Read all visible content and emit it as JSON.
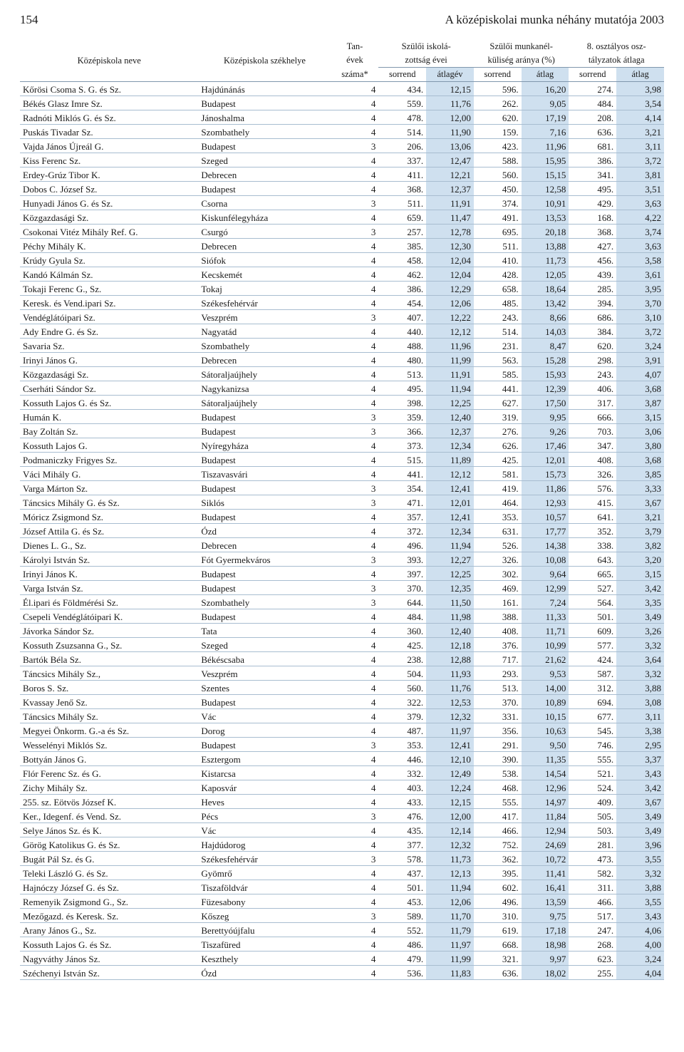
{
  "page_number": "154",
  "page_title": "A középiskolai munka néhány mutatója 2003",
  "header": {
    "col_school_name": "Középiskola neve",
    "col_school_loc": "Középiskola székhelye",
    "col_years_top": "Tan-",
    "col_years_mid": "évek",
    "col_years_bot": "száma*",
    "group_iskola_top": "Szülői iskolá-",
    "group_iskola_bot": "zottság évei",
    "group_munka_top": "Szülői munkanél-",
    "group_munka_bot": "küliség aránya (%)",
    "group_oszt_top": "8. osztályos osz-",
    "group_oszt_bot": "tályzatok átlaga",
    "sub_sorrend": "sorrend",
    "sub_atlagev": "átlagév",
    "sub_atlag": "átlag"
  },
  "colors": {
    "shade": "#cfe0ef",
    "row_border": "#a8bdd0",
    "head_border": "#8097ad",
    "text": "#1a1a1a",
    "background": "#ffffff"
  },
  "rows": [
    {
      "name": "Kőrösi Csoma S. G. és Sz.",
      "loc": "Hajdúnánás",
      "yrs": "4",
      "s1": "434.",
      "v1": "12,15",
      "s2": "596.",
      "v2": "16,20",
      "s3": "274.",
      "v3": "3,98"
    },
    {
      "name": "Békés Glasz Imre Sz.",
      "loc": "Budapest",
      "yrs": "4",
      "s1": "559.",
      "v1": "11,76",
      "s2": "262.",
      "v2": "9,05",
      "s3": "484.",
      "v3": "3,54"
    },
    {
      "name": "Radnóti Miklós G. és Sz.",
      "loc": "Jánoshalma",
      "yrs": "4",
      "s1": "478.",
      "v1": "12,00",
      "s2": "620.",
      "v2": "17,19",
      "s3": "208.",
      "v3": "4,14"
    },
    {
      "name": "Puskás Tivadar Sz.",
      "loc": "Szombathely",
      "yrs": "4",
      "s1": "514.",
      "v1": "11,90",
      "s2": "159.",
      "v2": "7,16",
      "s3": "636.",
      "v3": "3,21"
    },
    {
      "name": "Vajda János Újreál G.",
      "loc": "Budapest",
      "yrs": "3",
      "s1": "206.",
      "v1": "13,06",
      "s2": "423.",
      "v2": "11,96",
      "s3": "681.",
      "v3": "3,11"
    },
    {
      "name": "Kiss Ferenc Sz.",
      "loc": "Szeged",
      "yrs": "4",
      "s1": "337.",
      "v1": "12,47",
      "s2": "588.",
      "v2": "15,95",
      "s3": "386.",
      "v3": "3,72"
    },
    {
      "name": "Erdey-Grúz Tibor K.",
      "loc": "Debrecen",
      "yrs": "4",
      "s1": "411.",
      "v1": "12,21",
      "s2": "560.",
      "v2": "15,15",
      "s3": "341.",
      "v3": "3,81"
    },
    {
      "name": "Dobos C. József Sz.",
      "loc": "Budapest",
      "yrs": "4",
      "s1": "368.",
      "v1": "12,37",
      "s2": "450.",
      "v2": "12,58",
      "s3": "495.",
      "v3": "3,51"
    },
    {
      "name": "Hunyadi János G. és Sz.",
      "loc": "Csorna",
      "yrs": "3",
      "s1": "511.",
      "v1": "11,91",
      "s2": "374.",
      "v2": "10,91",
      "s3": "429.",
      "v3": "3,63"
    },
    {
      "name": "Közgazdasági Sz.",
      "loc": "Kiskunfélegyháza",
      "yrs": "4",
      "s1": "659.",
      "v1": "11,47",
      "s2": "491.",
      "v2": "13,53",
      "s3": "168.",
      "v3": "4,22"
    },
    {
      "name": "Csokonai Vitéz Mihály Ref. G.",
      "loc": "Csurgó",
      "yrs": "3",
      "s1": "257.",
      "v1": "12,78",
      "s2": "695.",
      "v2": "20,18",
      "s3": "368.",
      "v3": "3,74"
    },
    {
      "name": "Péchy Mihály K.",
      "loc": "Debrecen",
      "yrs": "4",
      "s1": "385.",
      "v1": "12,30",
      "s2": "511.",
      "v2": "13,88",
      "s3": "427.",
      "v3": "3,63"
    },
    {
      "name": "Krúdy Gyula Sz.",
      "loc": "Siófok",
      "yrs": "4",
      "s1": "458.",
      "v1": "12,04",
      "s2": "410.",
      "v2": "11,73",
      "s3": "456.",
      "v3": "3,58"
    },
    {
      "name": "Kandó Kálmán Sz.",
      "loc": "Kecskemét",
      "yrs": "4",
      "s1": "462.",
      "v1": "12,04",
      "s2": "428.",
      "v2": "12,05",
      "s3": "439.",
      "v3": "3,61"
    },
    {
      "name": "Tokaji Ferenc G., Sz.",
      "loc": "Tokaj",
      "yrs": "4",
      "s1": "386.",
      "v1": "12,29",
      "s2": "658.",
      "v2": "18,64",
      "s3": "285.",
      "v3": "3,95"
    },
    {
      "name": "Keresk. és Vend.ipari Sz.",
      "loc": "Székesfehérvár",
      "yrs": "4",
      "s1": "454.",
      "v1": "12,06",
      "s2": "485.",
      "v2": "13,42",
      "s3": "394.",
      "v3": "3,70"
    },
    {
      "name": "Vendéglátóipari Sz.",
      "loc": "Veszprém",
      "yrs": "3",
      "s1": "407.",
      "v1": "12,22",
      "s2": "243.",
      "v2": "8,66",
      "s3": "686.",
      "v3": "3,10"
    },
    {
      "name": "Ady Endre G. és Sz.",
      "loc": "Nagyatád",
      "yrs": "4",
      "s1": "440.",
      "v1": "12,12",
      "s2": "514.",
      "v2": "14,03",
      "s3": "384.",
      "v3": "3,72"
    },
    {
      "name": "Savaria Sz.",
      "loc": "Szombathely",
      "yrs": "4",
      "s1": "488.",
      "v1": "11,96",
      "s2": "231.",
      "v2": "8,47",
      "s3": "620.",
      "v3": "3,24"
    },
    {
      "name": "Irinyi János G.",
      "loc": "Debrecen",
      "yrs": "4",
      "s1": "480.",
      "v1": "11,99",
      "s2": "563.",
      "v2": "15,28",
      "s3": "298.",
      "v3": "3,91"
    },
    {
      "name": "Közgazdasági Sz.",
      "loc": "Sátoraljaújhely",
      "yrs": "4",
      "s1": "513.",
      "v1": "11,91",
      "s2": "585.",
      "v2": "15,93",
      "s3": "243.",
      "v3": "4,07"
    },
    {
      "name": "Cserháti Sándor Sz.",
      "loc": "Nagykanizsa",
      "yrs": "4",
      "s1": "495.",
      "v1": "11,94",
      "s2": "441.",
      "v2": "12,39",
      "s3": "406.",
      "v3": "3,68"
    },
    {
      "name": "Kossuth Lajos G. és Sz.",
      "loc": "Sátoraljaújhely",
      "yrs": "4",
      "s1": "398.",
      "v1": "12,25",
      "s2": "627.",
      "v2": "17,50",
      "s3": "317.",
      "v3": "3,87"
    },
    {
      "name": "Humán K.",
      "loc": "Budapest",
      "yrs": "3",
      "s1": "359.",
      "v1": "12,40",
      "s2": "319.",
      "v2": "9,95",
      "s3": "666.",
      "v3": "3,15"
    },
    {
      "name": "Bay Zoltán Sz.",
      "loc": "Budapest",
      "yrs": "3",
      "s1": "366.",
      "v1": "12,37",
      "s2": "276.",
      "v2": "9,26",
      "s3": "703.",
      "v3": "3,06"
    },
    {
      "name": "Kossuth Lajos G.",
      "loc": "Nyíregyháza",
      "yrs": "4",
      "s1": "373.",
      "v1": "12,34",
      "s2": "626.",
      "v2": "17,46",
      "s3": "347.",
      "v3": "3,80"
    },
    {
      "name": "Podmaniczky Frigyes Sz.",
      "loc": "Budapest",
      "yrs": "4",
      "s1": "515.",
      "v1": "11,89",
      "s2": "425.",
      "v2": "12,01",
      "s3": "408.",
      "v3": "3,68"
    },
    {
      "name": "Váci Mihály G.",
      "loc": "Tiszavasvári",
      "yrs": "4",
      "s1": "441.",
      "v1": "12,12",
      "s2": "581.",
      "v2": "15,73",
      "s3": "326.",
      "v3": "3,85"
    },
    {
      "name": "Varga Márton Sz.",
      "loc": "Budapest",
      "yrs": "3",
      "s1": "354.",
      "v1": "12,41",
      "s2": "419.",
      "v2": "11,86",
      "s3": "576.",
      "v3": "3,33"
    },
    {
      "name": "Táncsics Mihály G. és Sz.",
      "loc": "Siklós",
      "yrs": "3",
      "s1": "471.",
      "v1": "12,01",
      "s2": "464.",
      "v2": "12,93",
      "s3": "415.",
      "v3": "3,67"
    },
    {
      "name": "Móricz Zsigmond Sz.",
      "loc": "Budapest",
      "yrs": "4",
      "s1": "357.",
      "v1": "12,41",
      "s2": "353.",
      "v2": "10,57",
      "s3": "641.",
      "v3": "3,21"
    },
    {
      "name": "József Attila G. és Sz.",
      "loc": "Ózd",
      "yrs": "4",
      "s1": "372.",
      "v1": "12,34",
      "s2": "631.",
      "v2": "17,77",
      "s3": "352.",
      "v3": "3,79"
    },
    {
      "name": "Dienes L. G., Sz.",
      "loc": "Debrecen",
      "yrs": "4",
      "s1": "496.",
      "v1": "11,94",
      "s2": "526.",
      "v2": "14,38",
      "s3": "338.",
      "v3": "3,82"
    },
    {
      "name": "Károlyi István Sz.",
      "loc": "Fót Gyermekváros",
      "yrs": "3",
      "s1": "393.",
      "v1": "12,27",
      "s2": "326.",
      "v2": "10,08",
      "s3": "643.",
      "v3": "3,20"
    },
    {
      "name": "Irinyi János K.",
      "loc": "Budapest",
      "yrs": "4",
      "s1": "397.",
      "v1": "12,25",
      "s2": "302.",
      "v2": "9,64",
      "s3": "665.",
      "v3": "3,15"
    },
    {
      "name": "Varga István Sz.",
      "loc": "Budapest",
      "yrs": "3",
      "s1": "370.",
      "v1": "12,35",
      "s2": "469.",
      "v2": "12,99",
      "s3": "527.",
      "v3": "3,42"
    },
    {
      "name": "Él.ipari és Földmérési Sz.",
      "loc": "Szombathely",
      "yrs": "3",
      "s1": "644.",
      "v1": "11,50",
      "s2": "161.",
      "v2": "7,24",
      "s3": "564.",
      "v3": "3,35"
    },
    {
      "name": "Csepeli Vendéglátóipari K.",
      "loc": "Budapest",
      "yrs": "4",
      "s1": "484.",
      "v1": "11,98",
      "s2": "388.",
      "v2": "11,33",
      "s3": "501.",
      "v3": "3,49"
    },
    {
      "name": "Jávorka Sándor Sz.",
      "loc": "Tata",
      "yrs": "4",
      "s1": "360.",
      "v1": "12,40",
      "s2": "408.",
      "v2": "11,71",
      "s3": "609.",
      "v3": "3,26"
    },
    {
      "name": "Kossuth Zsuzsanna G., Sz.",
      "loc": "Szeged",
      "yrs": "4",
      "s1": "425.",
      "v1": "12,18",
      "s2": "376.",
      "v2": "10,99",
      "s3": "577.",
      "v3": "3,32"
    },
    {
      "name": "Bartók Béla Sz.",
      "loc": "Békéscsaba",
      "yrs": "4",
      "s1": "238.",
      "v1": "12,88",
      "s2": "717.",
      "v2": "21,62",
      "s3": "424.",
      "v3": "3,64"
    },
    {
      "name": "Táncsics Mihály Sz.,",
      "loc": "Veszprém",
      "yrs": "4",
      "s1": "504.",
      "v1": "11,93",
      "s2": "293.",
      "v2": "9,53",
      "s3": "587.",
      "v3": "3,32"
    },
    {
      "name": "Boros S. Sz.",
      "loc": "Szentes",
      "yrs": "4",
      "s1": "560.",
      "v1": "11,76",
      "s2": "513.",
      "v2": "14,00",
      "s3": "312.",
      "v3": "3,88"
    },
    {
      "name": "Kvassay Jenő Sz.",
      "loc": "Budapest",
      "yrs": "4",
      "s1": "322.",
      "v1": "12,53",
      "s2": "370.",
      "v2": "10,89",
      "s3": "694.",
      "v3": "3,08"
    },
    {
      "name": "Táncsics Mihály Sz.",
      "loc": "Vác",
      "yrs": "4",
      "s1": "379.",
      "v1": "12,32",
      "s2": "331.",
      "v2": "10,15",
      "s3": "677.",
      "v3": "3,11"
    },
    {
      "name": "Megyei Önkorm. G.-a és Sz.",
      "loc": "Dorog",
      "yrs": "4",
      "s1": "487.",
      "v1": "11,97",
      "s2": "356.",
      "v2": "10,63",
      "s3": "545.",
      "v3": "3,38"
    },
    {
      "name": "Wesselényi Miklós Sz.",
      "loc": "Budapest",
      "yrs": "3",
      "s1": "353.",
      "v1": "12,41",
      "s2": "291.",
      "v2": "9,50",
      "s3": "746.",
      "v3": "2,95"
    },
    {
      "name": "Bottyán János G.",
      "loc": "Esztergom",
      "yrs": "4",
      "s1": "446.",
      "v1": "12,10",
      "s2": "390.",
      "v2": "11,35",
      "s3": "555.",
      "v3": "3,37"
    },
    {
      "name": "Flór Ferenc Sz. és G.",
      "loc": "Kistarcsa",
      "yrs": "4",
      "s1": "332.",
      "v1": "12,49",
      "s2": "538.",
      "v2": "14,54",
      "s3": "521.",
      "v3": "3,43"
    },
    {
      "name": "Zichy Mihály Sz.",
      "loc": "Kaposvár",
      "yrs": "4",
      "s1": "403.",
      "v1": "12,24",
      "s2": "468.",
      "v2": "12,96",
      "s3": "524.",
      "v3": "3,42"
    },
    {
      "name": "255. sz. Eötvös József K.",
      "loc": "Heves",
      "yrs": "4",
      "s1": "433.",
      "v1": "12,15",
      "s2": "555.",
      "v2": "14,97",
      "s3": "409.",
      "v3": "3,67"
    },
    {
      "name": "Ker., Idegenf. és Vend. Sz.",
      "loc": "Pécs",
      "yrs": "3",
      "s1": "476.",
      "v1": "12,00",
      "s2": "417.",
      "v2": "11,84",
      "s3": "505.",
      "v3": "3,49"
    },
    {
      "name": "Selye János Sz. és K.",
      "loc": "Vác",
      "yrs": "4",
      "s1": "435.",
      "v1": "12,14",
      "s2": "466.",
      "v2": "12,94",
      "s3": "503.",
      "v3": "3,49"
    },
    {
      "name": "Görög Katolikus G. és Sz.",
      "loc": "Hajdúdorog",
      "yrs": "4",
      "s1": "377.",
      "v1": "12,32",
      "s2": "752.",
      "v2": "24,69",
      "s3": "281.",
      "v3": "3,96"
    },
    {
      "name": "Bugát Pál Sz. és G.",
      "loc": "Székesfehérvár",
      "yrs": "3",
      "s1": "578.",
      "v1": "11,73",
      "s2": "362.",
      "v2": "10,72",
      "s3": "473.",
      "v3": "3,55"
    },
    {
      "name": "Teleki László G. és Sz.",
      "loc": "Gyömrő",
      "yrs": "4",
      "s1": "437.",
      "v1": "12,13",
      "s2": "395.",
      "v2": "11,41",
      "s3": "582.",
      "v3": "3,32"
    },
    {
      "name": "Hajnóczy József G. és Sz.",
      "loc": "Tiszaföldvár",
      "yrs": "4",
      "s1": "501.",
      "v1": "11,94",
      "s2": "602.",
      "v2": "16,41",
      "s3": "311.",
      "v3": "3,88"
    },
    {
      "name": "Remenyik Zsigmond G., Sz.",
      "loc": "Füzesabony",
      "yrs": "4",
      "s1": "453.",
      "v1": "12,06",
      "s2": "496.",
      "v2": "13,59",
      "s3": "466.",
      "v3": "3,55"
    },
    {
      "name": "Mezőgazd. és Keresk. Sz.",
      "loc": "Kőszeg",
      "yrs": "3",
      "s1": "589.",
      "v1": "11,70",
      "s2": "310.",
      "v2": "9,75",
      "s3": "517.",
      "v3": "3,43"
    },
    {
      "name": "Arany János G., Sz.",
      "loc": "Berettyóújfalu",
      "yrs": "4",
      "s1": "552.",
      "v1": "11,79",
      "s2": "619.",
      "v2": "17,18",
      "s3": "247.",
      "v3": "4,06"
    },
    {
      "name": "Kossuth Lajos G. és Sz.",
      "loc": "Tiszafüred",
      "yrs": "4",
      "s1": "486.",
      "v1": "11,97",
      "s2": "668.",
      "v2": "18,98",
      "s3": "268.",
      "v3": "4,00"
    },
    {
      "name": "Nagyváthy János Sz.",
      "loc": "Keszthely",
      "yrs": "4",
      "s1": "479.",
      "v1": "11,99",
      "s2": "321.",
      "v2": "9,97",
      "s3": "623.",
      "v3": "3,24"
    },
    {
      "name": "Széchenyi István Sz.",
      "loc": "Ózd",
      "yrs": "4",
      "s1": "536.",
      "v1": "11,83",
      "s2": "636.",
      "v2": "18,02",
      "s3": "255.",
      "v3": "4,04"
    }
  ]
}
